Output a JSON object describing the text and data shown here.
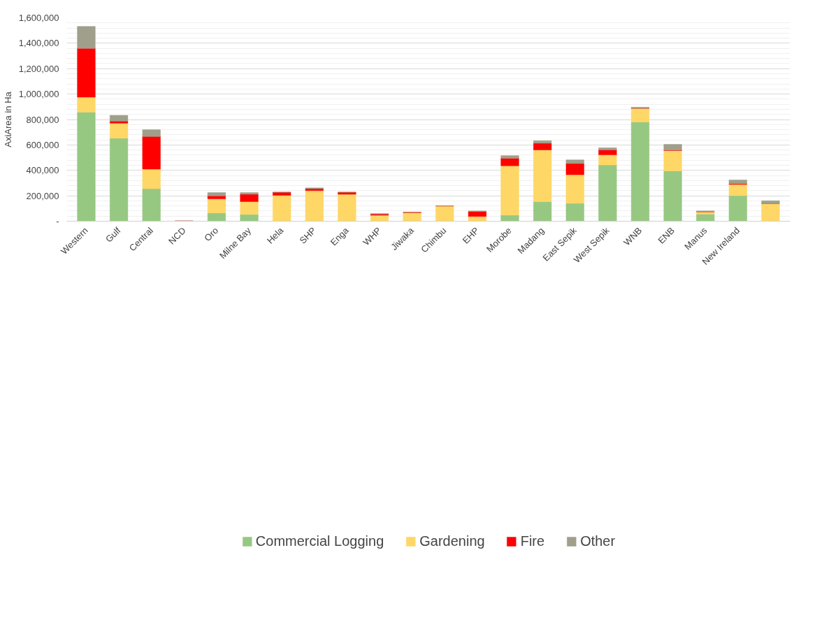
{
  "chart_data": {
    "type": "bar",
    "stacked": true,
    "ylabel": "AxiArea in Ha",
    "categories": [
      "Western",
      "Gulf",
      "Central",
      "NCD",
      "Oro",
      "Milne Bay",
      "Hela",
      "SHP",
      "Enga",
      "WHP",
      "Jiwaka",
      "Chimbu",
      "EHP",
      "Morobe",
      "Madang",
      "East Sepik",
      "West Sepik",
      "WNB",
      "ENB",
      "Manus",
      "New Ireland",
      null
    ],
    "series": [
      {
        "name": "Commercial Logging",
        "color": "#97c882",
        "values": [
          858000,
          653000,
          255000,
          0,
          65000,
          53000,
          0,
          0,
          0,
          0,
          0,
          0,
          0,
          48000,
          154000,
          141000,
          442000,
          781000,
          396000,
          56000,
          201000,
          0
        ]
      },
      {
        "name": "Gardening",
        "color": "#fed766",
        "values": [
          118000,
          118000,
          155000,
          0,
          111000,
          101000,
          203000,
          240000,
          212000,
          47000,
          67000,
          120000,
          37000,
          388000,
          407000,
          225000,
          80000,
          107000,
          160000,
          18000,
          88000,
          139000
        ]
      },
      {
        "name": "Fire",
        "color": "#ff0000",
        "values": [
          384000,
          16000,
          257000,
          3000,
          24000,
          58000,
          25000,
          15000,
          16000,
          9000,
          4000,
          null,
          40000,
          59000,
          53000,
          88000,
          39000,
          0,
          3000,
          0,
          5000,
          0
        ]
      },
      {
        "name": "Other",
        "color": "#a09f8b",
        "values": [
          172000,
          46000,
          53000,
          0,
          25000,
          13000,
          0,
          7000,
          0,
          4000,
          0,
          3000,
          4000,
          21000,
          19000,
          29000,
          17000,
          9000,
          46000,
          7000,
          31000,
          22000
        ]
      }
    ],
    "ylim": [
      0,
      1600000
    ],
    "yticks": [
      {
        "value": 0,
        "label": "-"
      },
      {
        "value": 200000,
        "label": "200,000"
      },
      {
        "value": 400000,
        "label": "400,000"
      },
      {
        "value": 600000,
        "label": "600,000"
      },
      {
        "value": 800000,
        "label": "800,000"
      },
      {
        "value": 1000000,
        "label": "1,000,000"
      },
      {
        "value": 1200000,
        "label": "1,200,000"
      },
      {
        "value": 1400000,
        "label": "1,400,000"
      },
      {
        "value": 1600000,
        "label": "1,600,000"
      }
    ],
    "grid": "y",
    "legend": "bottom"
  }
}
